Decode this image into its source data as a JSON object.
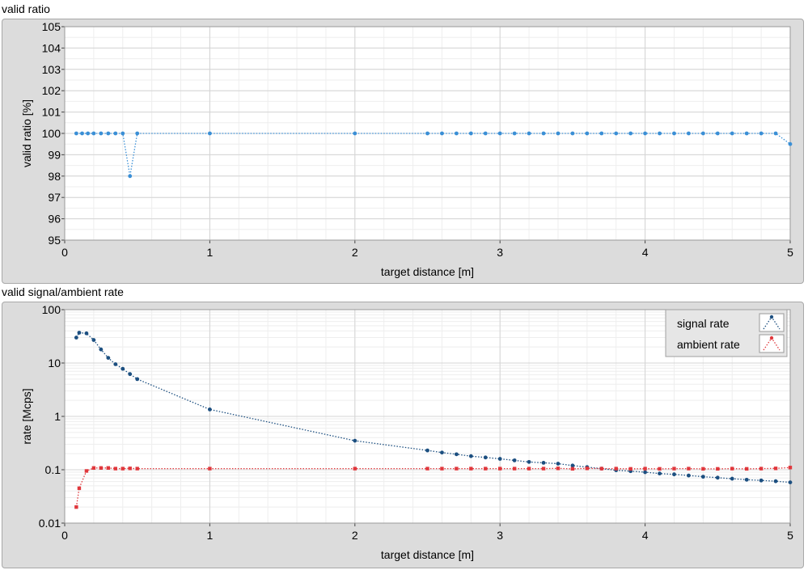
{
  "chart_data": [
    {
      "type": "line",
      "title": "valid ratio",
      "xlabel": "target distance [m]",
      "ylabel": "valid ratio [%]",
      "xlim": [
        0,
        5
      ],
      "ylim": [
        95,
        105
      ],
      "xticks": [
        "0",
        "1",
        "2",
        "3",
        "4",
        "5"
      ],
      "yticks": [
        "95",
        "96",
        "97",
        "98",
        "99",
        "100",
        "101",
        "102",
        "103",
        "104",
        "105"
      ],
      "grid": true,
      "series": [
        {
          "color": "#3a8fd6",
          "x": [
            0.08,
            0.12,
            0.16,
            0.2,
            0.25,
            0.3,
            0.35,
            0.4,
            0.45,
            0.5,
            1,
            2,
            2.5,
            2.6,
            2.7,
            2.8,
            2.9,
            3,
            3.1,
            3.2,
            3.3,
            3.4,
            3.5,
            3.6,
            3.7,
            3.8,
            3.9,
            4,
            4.1,
            4.2,
            4.3,
            4.4,
            4.5,
            4.6,
            4.7,
            4.8,
            4.9,
            5
          ],
          "y": [
            100,
            100,
            100,
            100,
            100,
            100,
            100,
            100,
            98,
            100,
            100,
            100,
            100,
            100,
            100,
            100,
            100,
            100,
            100,
            100,
            100,
            100,
            100,
            100,
            100,
            100,
            100,
            100,
            100,
            100,
            100,
            100,
            100,
            100,
            100,
            100,
            100,
            99.5
          ]
        }
      ]
    },
    {
      "type": "line",
      "title": "valid signal/ambient rate",
      "xlabel": "target distance [m]",
      "ylabel": "rate [Mcps]",
      "xlim": [
        0,
        5
      ],
      "ylim": [
        0.01,
        100
      ],
      "yscale": "log",
      "xticks": [
        "0",
        "1",
        "2",
        "3",
        "4",
        "5"
      ],
      "yticks": [
        "0.01",
        "0.1",
        "1",
        "10",
        "100"
      ],
      "grid": true,
      "legend": "top-right",
      "series": [
        {
          "name": "signal rate",
          "color": "#1c4f80",
          "x": [
            0.08,
            0.1,
            0.15,
            0.2,
            0.25,
            0.3,
            0.35,
            0.4,
            0.45,
            0.5,
            1,
            2,
            2.5,
            2.6,
            2.7,
            2.8,
            2.9,
            3,
            3.1,
            3.2,
            3.3,
            3.4,
            3.5,
            3.6,
            3.7,
            3.8,
            3.9,
            4,
            4.1,
            4.2,
            4.3,
            4.4,
            4.5,
            4.6,
            4.7,
            4.8,
            4.9,
            5
          ],
          "y": [
            30,
            37,
            36,
            27,
            18,
            12.5,
            9.5,
            7.8,
            6.2,
            5,
            1.35,
            0.35,
            0.23,
            0.21,
            0.195,
            0.18,
            0.17,
            0.16,
            0.15,
            0.14,
            0.135,
            0.13,
            0.12,
            0.112,
            0.105,
            0.098,
            0.094,
            0.09,
            0.085,
            0.082,
            0.078,
            0.074,
            0.071,
            0.068,
            0.065,
            0.063,
            0.061,
            0.058
          ]
        },
        {
          "name": "ambient rate",
          "color": "#e0373c",
          "x": [
            0.08,
            0.1,
            0.15,
            0.2,
            0.25,
            0.3,
            0.35,
            0.4,
            0.45,
            0.5,
            1,
            2,
            2.5,
            2.6,
            2.7,
            2.8,
            2.9,
            3,
            3.1,
            3.2,
            3.3,
            3.4,
            3.5,
            3.6,
            3.7,
            3.8,
            3.9,
            4,
            4.1,
            4.2,
            4.3,
            4.4,
            4.5,
            4.6,
            4.7,
            4.8,
            4.9,
            5
          ],
          "y": [
            0.02,
            0.045,
            0.095,
            0.108,
            0.108,
            0.108,
            0.105,
            0.105,
            0.106,
            0.105,
            0.105,
            0.105,
            0.105,
            0.105,
            0.105,
            0.105,
            0.105,
            0.105,
            0.105,
            0.105,
            0.105,
            0.106,
            0.104,
            0.106,
            0.105,
            0.105,
            0.104,
            0.105,
            0.104,
            0.105,
            0.105,
            0.104,
            0.104,
            0.105,
            0.104,
            0.105,
            0.106,
            0.11
          ]
        }
      ]
    }
  ]
}
